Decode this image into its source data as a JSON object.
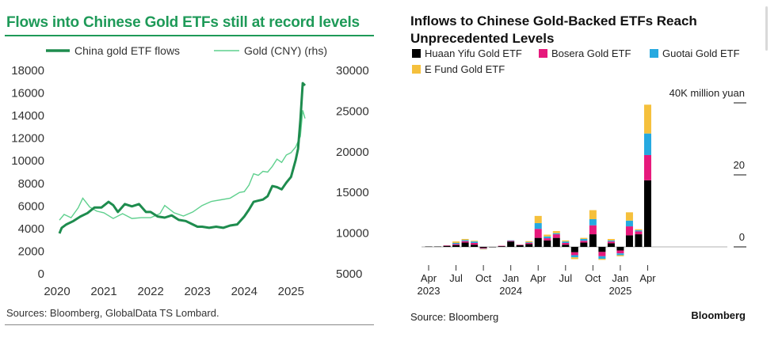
{
  "left": {
    "title": "Flows into Chinese Gold ETFs still at record levels",
    "source": "Sources: Bloomberg, GlobalData TS Lombard."
  },
  "right": {
    "title": "Inflows to Chinese Gold-Backed ETFs Reach Unprecedented Levels",
    "source": "Source: Bloomberg",
    "brand": "Bloomberg"
  },
  "colors": {
    "etf_line": "#1e8c4e",
    "gold_line": "#5fd08e",
    "left_title": "#1e9a58",
    "huaan": "#000000",
    "bosera": "#e6197c",
    "guotai": "#26a9e0",
    "efund": "#f5c03c"
  },
  "chart_data": [
    {
      "type": "line",
      "legend_position": "top",
      "x_ticks": [
        "2020",
        "2021",
        "2022",
        "2023",
        "2024",
        "2025"
      ],
      "y_left": {
        "ticks": [
          0,
          2000,
          4000,
          6000,
          8000,
          10000,
          12000,
          14000,
          16000,
          18000
        ],
        "lim": [
          0,
          18000
        ]
      },
      "y_right": {
        "ticks": [
          5000,
          10000,
          15000,
          20000,
          25000,
          30000
        ],
        "lim": [
          5000,
          30000
        ]
      },
      "grid": false,
      "series": [
        {
          "name": "China gold ETF flows",
          "axis": "left",
          "x": [
            2020.05,
            2020.1,
            2020.2,
            2020.35,
            2020.5,
            2020.65,
            2020.8,
            2020.95,
            2021.1,
            2021.2,
            2021.3,
            2021.45,
            2021.6,
            2021.75,
            2021.9,
            2022.0,
            2022.15,
            2022.3,
            2022.45,
            2022.6,
            2022.75,
            2022.9,
            2023.0,
            2023.1,
            2023.25,
            2023.4,
            2023.55,
            2023.7,
            2023.85,
            2024.0,
            2024.1,
            2024.2,
            2024.3,
            2024.4,
            2024.5,
            2024.6,
            2024.7,
            2024.8,
            2024.9,
            2025.0,
            2025.1,
            2025.15,
            2025.2,
            2025.25,
            2025.3
          ],
          "values": [
            3500,
            4000,
            4300,
            4600,
            5000,
            5300,
            5800,
            5800,
            6300,
            6000,
            5400,
            6100,
            5900,
            6100,
            5400,
            5400,
            5000,
            4900,
            5100,
            4700,
            4600,
            4300,
            4100,
            4100,
            4000,
            4100,
            4000,
            4200,
            4300,
            5000,
            5600,
            6300,
            6400,
            6500,
            6800,
            7700,
            7600,
            7400,
            8000,
            8500,
            10000,
            11000,
            13500,
            16800,
            16600
          ]
        },
        {
          "name": "Gold (CNY) (rhs)",
          "axis": "right",
          "x": [
            2020.05,
            2020.15,
            2020.3,
            2020.45,
            2020.55,
            2020.7,
            2020.85,
            2021.0,
            2021.2,
            2021.4,
            2021.6,
            2021.8,
            2022.0,
            2022.2,
            2022.3,
            2022.5,
            2022.7,
            2022.9,
            2023.1,
            2023.3,
            2023.5,
            2023.7,
            2023.9,
            2024.0,
            2024.1,
            2024.2,
            2024.3,
            2024.4,
            2024.5,
            2024.6,
            2024.7,
            2024.8,
            2024.9,
            2025.0,
            2025.1,
            2025.2,
            2025.25,
            2025.3
          ],
          "values": [
            11500,
            12200,
            11800,
            13000,
            14200,
            13100,
            12600,
            12400,
            11700,
            12300,
            11700,
            11800,
            11800,
            12300,
            13300,
            12400,
            12000,
            12500,
            13300,
            13800,
            14000,
            14200,
            14900,
            15000,
            15800,
            17200,
            17000,
            17500,
            17400,
            18100,
            19000,
            18600,
            19500,
            19800,
            20500,
            21800,
            25000,
            24000
          ]
        }
      ]
    },
    {
      "type": "bar",
      "stacked": true,
      "unit": "40K million yuan",
      "legend_position": "top",
      "x_tick_labels": [
        [
          "Apr",
          "2023"
        ],
        [
          "Jul",
          ""
        ],
        [
          "Oct",
          ""
        ],
        [
          "Jan",
          "2024"
        ],
        [
          "Apr",
          ""
        ],
        [
          "Jul",
          ""
        ],
        [
          "Oct",
          ""
        ],
        [
          "Jan",
          "2025"
        ],
        [
          "Apr",
          ""
        ]
      ],
      "x_tick_index": [
        0,
        3,
        6,
        9,
        12,
        15,
        18,
        21,
        24
      ],
      "y_ticks": [
        "40K million yuan",
        "20",
        "0"
      ],
      "ylim": [
        -2,
        40
      ],
      "categories": [
        "2023-04",
        "2023-05",
        "2023-06",
        "2023-07",
        "2023-08",
        "2023-09",
        "2023-10",
        "2023-11",
        "2023-12",
        "2024-01",
        "2024-02",
        "2024-03",
        "2024-04",
        "2024-05",
        "2024-06",
        "2024-07",
        "2024-08",
        "2024-09",
        "2024-10",
        "2024-11",
        "2024-12",
        "2025-01",
        "2025-02",
        "2025-03",
        "2025-04"
      ],
      "series": [
        {
          "name": "Huaan Yifu Gold ETF",
          "values": [
            0.1,
            0.1,
            0.3,
            0.5,
            1.2,
            0.6,
            -0.3,
            -0.1,
            0.2,
            1.5,
            0.5,
            0.8,
            2.5,
            1.8,
            2.5,
            0.6,
            -1.5,
            1.2,
            3.5,
            -1.4,
            1.0,
            -1.0,
            3.2,
            3.5,
            18.5
          ]
        },
        {
          "name": "Bosera Gold ETF",
          "values": [
            0.0,
            0.0,
            0.1,
            0.3,
            0.4,
            0.5,
            -0.2,
            0.0,
            0.1,
            0.2,
            0.1,
            0.3,
            2.5,
            0.6,
            1.0,
            0.5,
            -0.8,
            0.5,
            2.5,
            -1.2,
            0.5,
            -0.8,
            2.5,
            0.8,
            7.0
          ]
        },
        {
          "name": "Guotai Gold ETF",
          "values": [
            0.0,
            0.0,
            0.0,
            0.3,
            0.3,
            0.4,
            -0.1,
            0.0,
            0.0,
            0.1,
            0.0,
            0.2,
            1.6,
            0.5,
            0.3,
            0.4,
            -0.6,
            0.5,
            1.7,
            -0.7,
            0.3,
            -0.5,
            1.6,
            0.3,
            6.0
          ]
        },
        {
          "name": "E Fund Gold ETF",
          "values": [
            0.0,
            0.0,
            0.0,
            0.4,
            0.3,
            0.2,
            -0.1,
            0.0,
            0.0,
            0.0,
            0.0,
            0.3,
            2.0,
            0.5,
            0.6,
            0.3,
            -0.5,
            0.3,
            2.5,
            -0.3,
            0.4,
            -0.3,
            2.3,
            0.3,
            8.0
          ]
        }
      ]
    }
  ]
}
